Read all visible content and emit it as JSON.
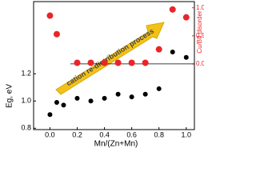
{
  "chart_data": {
    "type": "scatter",
    "x_label": "Mn/(Zn+Mn)",
    "y_label": "Eg, eV",
    "y2_label": "Cu/BII disorder",
    "annotation": "cation re-distribution process",
    "xlim": [
      -0.12,
      1.06
    ],
    "xticks": [
      {
        "value": 0,
        "label": "0.0"
      },
      0.2,
      0.4,
      0.6,
      0.8,
      {
        "value": 1,
        "label": "1.0"
      }
    ],
    "ylim": [
      0.79,
      1.73
    ],
    "yticks": [
      {
        "value": 0.8,
        "label": "0.8"
      },
      {
        "value": 1,
        "label": "1.0"
      },
      1.2
    ],
    "y2lim": [
      -1.17,
      1.11
    ],
    "y2ticks": [
      {
        "value": 0,
        "label": "0.0"
      },
      0.5,
      {
        "value": 1,
        "label": "1.0"
      }
    ],
    "series": [
      {
        "name": "Eg",
        "color": "#000000",
        "x": [
          0,
          0.05,
          0.1,
          0.2,
          0.3,
          0.4,
          0.5,
          0.6,
          0.7,
          0.8,
          0.9,
          1
        ],
        "values": [
          0.9,
          0.99,
          0.97,
          1.02,
          1.0,
          1.02,
          1.05,
          1.03,
          1.05,
          1.09,
          1.36,
          1.32
        ]
      },
      {
        "name": "Cu/BII disorder",
        "color": "#e8262a",
        "axis": "y2",
        "x": [
          0,
          0.05,
          0.2,
          0.3,
          0.4,
          0.5,
          0.6,
          0.7,
          0.8,
          0.9,
          1
        ],
        "values": [
          0.86,
          0.53,
          0.02,
          0.02,
          0.02,
          0.02,
          0.02,
          0.02,
          0.26,
          0.97,
          0.83
        ]
      }
    ]
  }
}
